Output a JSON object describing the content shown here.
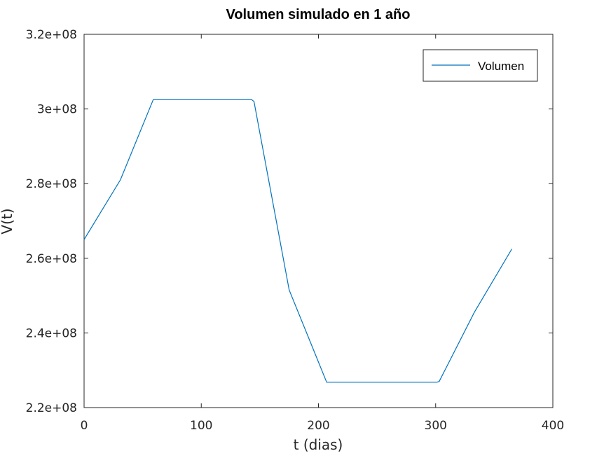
{
  "chart_data": {
    "type": "line",
    "title": "Volumen simulado en 1 año",
    "xlabel": "t (dias)",
    "ylabel": "V(t)",
    "xlim": [
      0,
      400
    ],
    "ylim": [
      220000000,
      320000000
    ],
    "x_ticks": [
      0,
      100,
      200,
      300,
      400
    ],
    "x_tick_labels": [
      "0",
      "100",
      "200",
      "300",
      "400"
    ],
    "y_ticks": [
      220000000,
      240000000,
      260000000,
      280000000,
      300000000,
      320000000
    ],
    "y_tick_labels": [
      "2.2e+08",
      "2.4e+08",
      "2.6e+08",
      "2.8e+08",
      "3e+08",
      "3.2e+08"
    ],
    "grid": false,
    "legend_position": "top-right",
    "series": [
      {
        "name": "Volumen",
        "color": "#0072bd",
        "x": [
          0,
          31,
          59,
          60,
          143,
          145,
          175,
          207,
          301,
          303,
          333,
          365
        ],
        "y": [
          265000000,
          281000000,
          302500000,
          302500000,
          302500000,
          302000000,
          251500000,
          226800000,
          226800000,
          227000000,
          245500000,
          262500000
        ]
      }
    ]
  }
}
